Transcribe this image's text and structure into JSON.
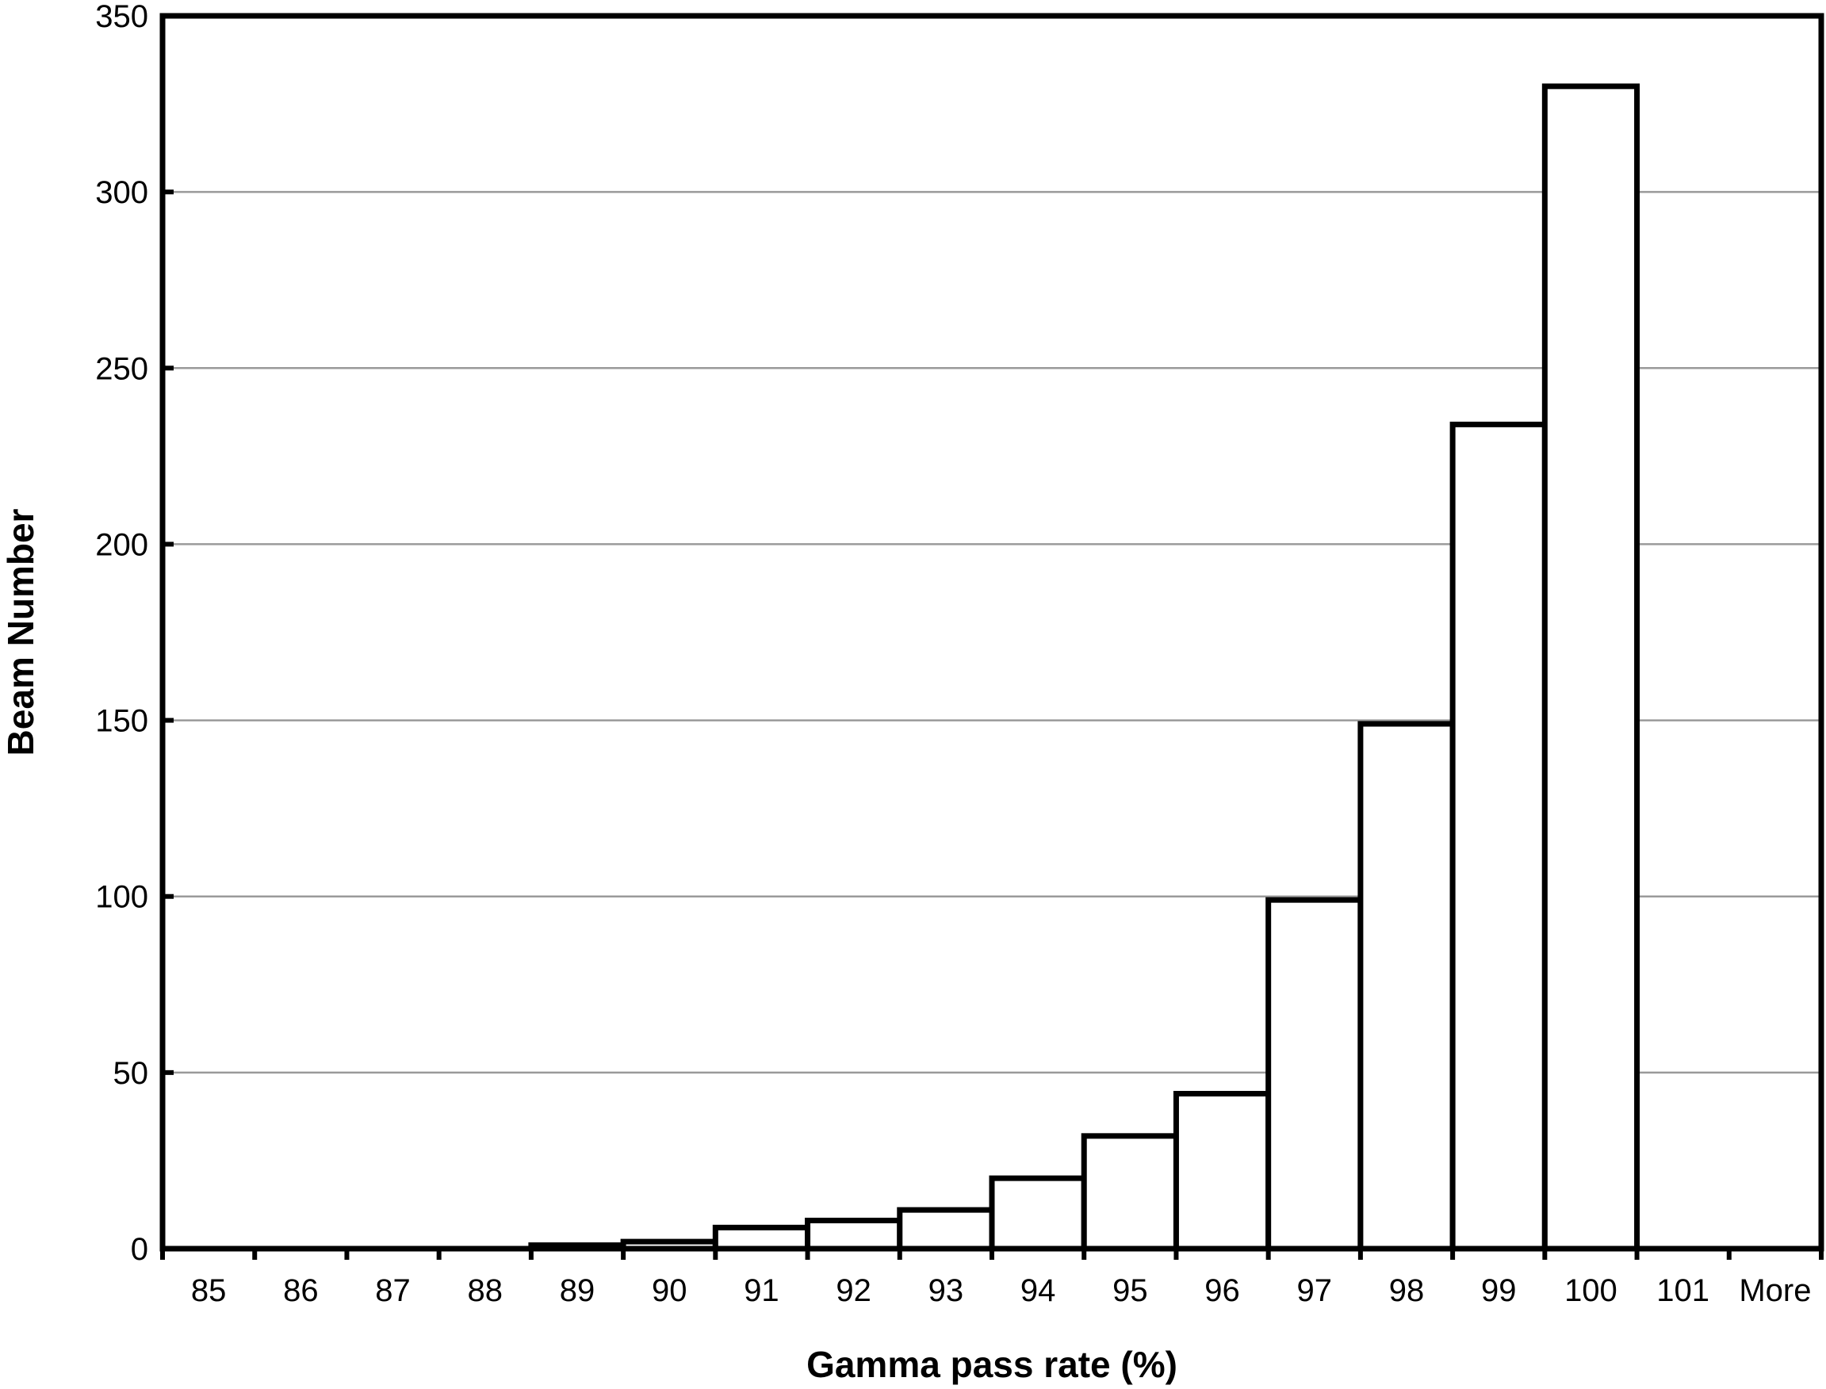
{
  "chart_data": {
    "type": "bar",
    "xlabel": "Gamma pass rate (%)",
    "ylabel": "Beam Number",
    "categories": [
      "85",
      "86",
      "87",
      "88",
      "89",
      "90",
      "91",
      "92",
      "93",
      "94",
      "95",
      "96",
      "97",
      "98",
      "99",
      "100",
      "101",
      "More"
    ],
    "values": [
      0,
      0,
      0,
      0,
      1,
      2,
      6,
      8,
      11,
      20,
      32,
      44,
      99,
      149,
      234,
      330,
      0,
      0
    ],
    "ylim": [
      0,
      350
    ],
    "yticks": [
      "0",
      "50",
      "100",
      "150",
      "200",
      "250",
      "300",
      "350"
    ],
    "grid": "horizontal",
    "legend": "none"
  }
}
